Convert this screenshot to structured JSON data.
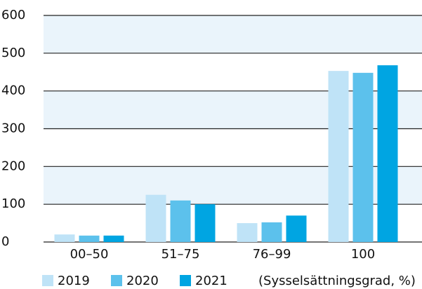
{
  "chart_data": {
    "type": "bar",
    "categories": [
      "00–50",
      "51–75",
      "76–99",
      "100"
    ],
    "series": [
      {
        "name": "2019",
        "color": "#bfe3f7",
        "values": [
          20,
          125,
          50,
          453
        ]
      },
      {
        "name": "2020",
        "color": "#5cc1ec",
        "values": [
          17,
          110,
          52,
          448
        ]
      },
      {
        "name": "2021",
        "color": "#00a5e2",
        "values": [
          17,
          100,
          70,
          468
        ]
      }
    ],
    "legend_note": "(Sysselsättningsgrad, %)",
    "ylim": [
      0,
      600
    ],
    "yticks": [
      0,
      100,
      200,
      300,
      400,
      500,
      600
    ],
    "grid": true,
    "band_color": "#eaf4fb",
    "legend": "bottom"
  }
}
